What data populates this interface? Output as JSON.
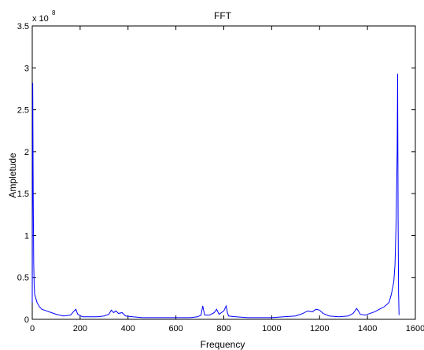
{
  "chart_data": {
    "type": "line",
    "title": "FFT",
    "xlabel": "Frequency",
    "ylabel": "Ampletude",
    "y_multiplier_label": "x 10",
    "y_multiplier_exponent": "8",
    "xlim": [
      0,
      1600
    ],
    "ylim": [
      0,
      3.5
    ],
    "xticks": [
      0,
      200,
      400,
      600,
      800,
      1000,
      1200,
      1400,
      1600
    ],
    "xtick_labels": [
      "0",
      "200",
      "400",
      "600",
      "800",
      "1000",
      "1200",
      "1400",
      "1600"
    ],
    "yticks": [
      0,
      0.5,
      1,
      1.5,
      2,
      2.5,
      3,
      3.5
    ],
    "ytick_labels": [
      "0",
      "0.5",
      "1",
      "1.5",
      "2",
      "2.5",
      "3",
      "3.5"
    ],
    "grid": false,
    "series_color": "#0000ff",
    "x": [
      0,
      2,
      4,
      6,
      8,
      10,
      15,
      20,
      30,
      40,
      60,
      80,
      100,
      130,
      160,
      175,
      182,
      190,
      210,
      240,
      270,
      300,
      320,
      330,
      340,
      350,
      360,
      375,
      390,
      420,
      460,
      500,
      540,
      580,
      620,
      660,
      690,
      705,
      712,
      720,
      740,
      760,
      770,
      780,
      800,
      810,
      815,
      820,
      850,
      900,
      950,
      1000,
      1050,
      1100,
      1130,
      1150,
      1170,
      1185,
      1200,
      1215,
      1240,
      1280,
      1320,
      1340,
      1355,
      1362,
      1370,
      1390,
      1410,
      1430,
      1450,
      1470,
      1490,
      1500,
      1510,
      1515,
      1520,
      1524,
      1526,
      1528,
      1530,
      1532
    ],
    "y": [
      0.2,
      2.82,
      1.5,
      0.68,
      0.4,
      0.3,
      0.25,
      0.2,
      0.15,
      0.12,
      0.1,
      0.08,
      0.06,
      0.04,
      0.05,
      0.1,
      0.12,
      0.06,
      0.03,
      0.03,
      0.03,
      0.04,
      0.06,
      0.11,
      0.08,
      0.1,
      0.07,
      0.08,
      0.04,
      0.03,
      0.02,
      0.02,
      0.02,
      0.02,
      0.02,
      0.02,
      0.03,
      0.05,
      0.16,
      0.05,
      0.05,
      0.08,
      0.12,
      0.06,
      0.1,
      0.16,
      0.08,
      0.04,
      0.03,
      0.02,
      0.02,
      0.02,
      0.03,
      0.04,
      0.07,
      0.1,
      0.09,
      0.12,
      0.11,
      0.07,
      0.04,
      0.03,
      0.04,
      0.07,
      0.13,
      0.1,
      0.06,
      0.05,
      0.07,
      0.09,
      0.12,
      0.15,
      0.2,
      0.3,
      0.45,
      0.65,
      1.2,
      2.0,
      2.93,
      1.2,
      0.3,
      0.05
    ]
  }
}
